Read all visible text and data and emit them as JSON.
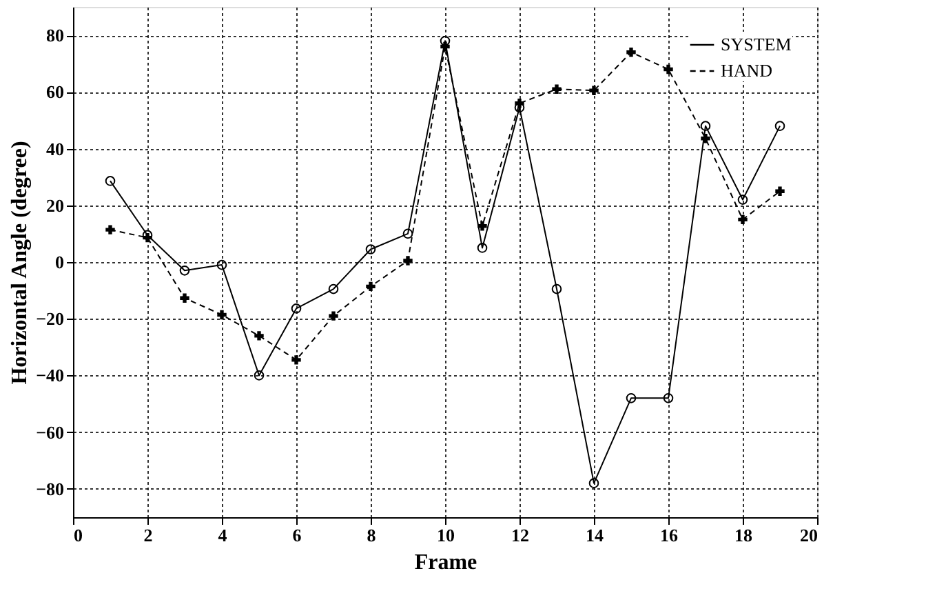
{
  "chart_data": {
    "type": "line",
    "xlabel": "Frame",
    "ylabel": "Horizontal Angle (degree)",
    "x": [
      1,
      2,
      3,
      4,
      5,
      6,
      7,
      8,
      9,
      10,
      11,
      12,
      13,
      14,
      15,
      16,
      17,
      18,
      19
    ],
    "series": [
      {
        "name": "SYSTEM",
        "color": "#000000",
        "marker": "circle",
        "line_style": "solid",
        "values": [
          28.6,
          9.5,
          -3,
          -1,
          -40,
          -16.4,
          -9.5,
          4.5,
          10,
          78,
          5,
          54.5,
          -9.5,
          -78,
          -48,
          -48,
          48,
          22,
          48
        ]
      },
      {
        "name": "HAND",
        "color": "#000000",
        "marker": "cross",
        "line_style": "dashed",
        "values": [
          11.4,
          8.6,
          -12.7,
          -18.6,
          -26,
          -34.5,
          -19,
          -8.6,
          0.5,
          76,
          12.7,
          56,
          61,
          60.5,
          74,
          68,
          43.6,
          15,
          25
        ]
      }
    ],
    "xlim": [
      0,
      20
    ],
    "xticks": [
      0,
      2,
      4,
      6,
      8,
      10,
      12,
      14,
      16,
      18,
      20
    ],
    "ylim": [
      -90,
      90
    ],
    "yticks": [
      -80,
      -60,
      -40,
      -20,
      0,
      20,
      40,
      60,
      80
    ],
    "grid": true,
    "legend": "top right"
  }
}
